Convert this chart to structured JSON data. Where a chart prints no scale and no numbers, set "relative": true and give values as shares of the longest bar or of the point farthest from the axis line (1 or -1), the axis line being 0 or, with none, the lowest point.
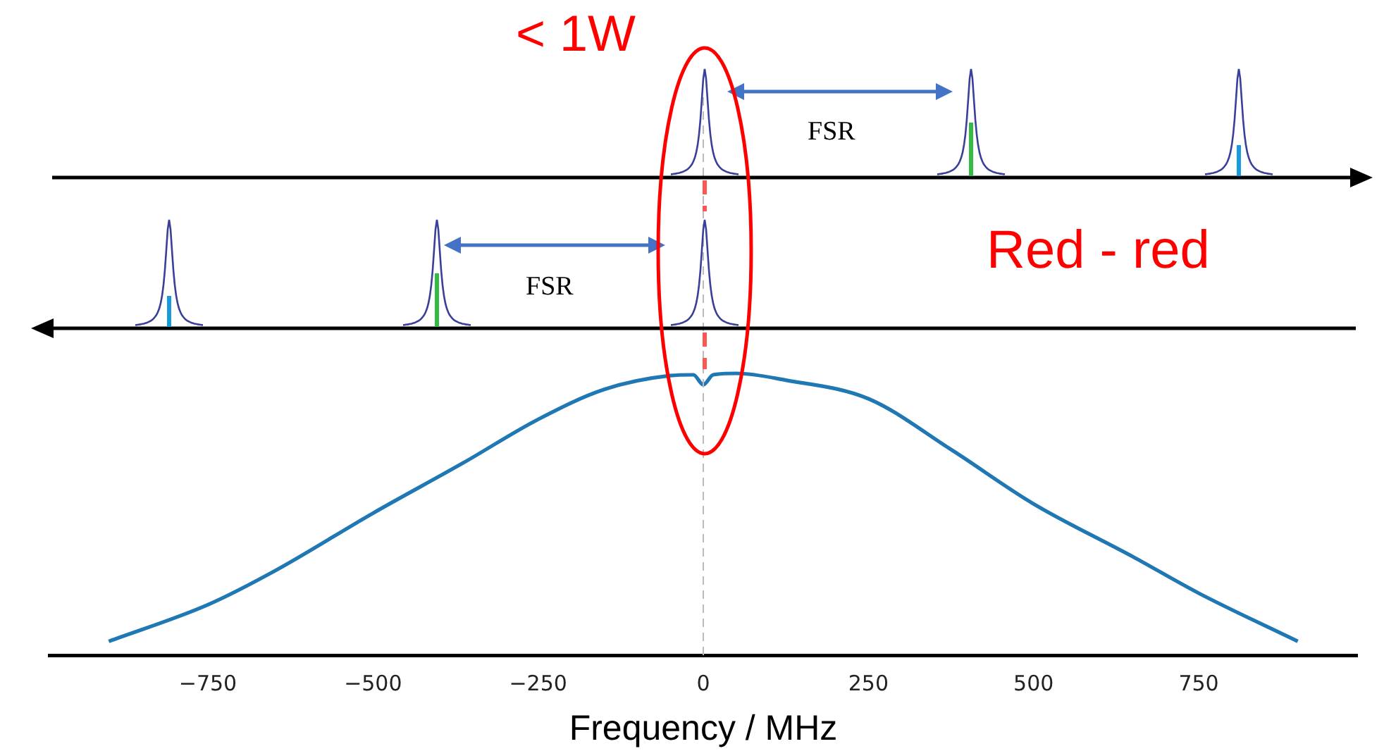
{
  "chart_data": {
    "type": "line",
    "relative": true,
    "xlabel": "Frequency / MHz",
    "xlim": [
      -990,
      990
    ],
    "xticks": [
      {
        "value": -750,
        "label": "−750"
      },
      {
        "value": -500,
        "label": "−500"
      },
      {
        "value": -250,
        "label": "−250"
      },
      0,
      250,
      500,
      750
    ],
    "series": [
      {
        "color": "#1f77b4",
        "x": [
          -900,
          -750,
          -648,
          -500,
          -363,
          -250,
          -150,
          -50,
          -15,
          0,
          15,
          50,
          125,
          250,
          375,
          500,
          650,
          750,
          900
        ],
        "values": [
          0.049,
          0.179,
          0.3,
          0.504,
          0.683,
          0.837,
          0.943,
          0.992,
          0.995,
          0.96,
          0.995,
          1.0,
          0.976,
          0.91,
          0.73,
          0.537,
          0.35,
          0.22,
          0.049
        ]
      }
    ],
    "ref_lines": [
      {
        "axis": "x",
        "value": 0,
        "color": "#bbbbbb",
        "line_style": "dashed"
      }
    ],
    "annotations": [
      "< 1W",
      "FSR",
      "FSR",
      "Red - red"
    ],
    "grid": false,
    "legend": false,
    "marker": "none",
    "line_style": "solid"
  }
}
